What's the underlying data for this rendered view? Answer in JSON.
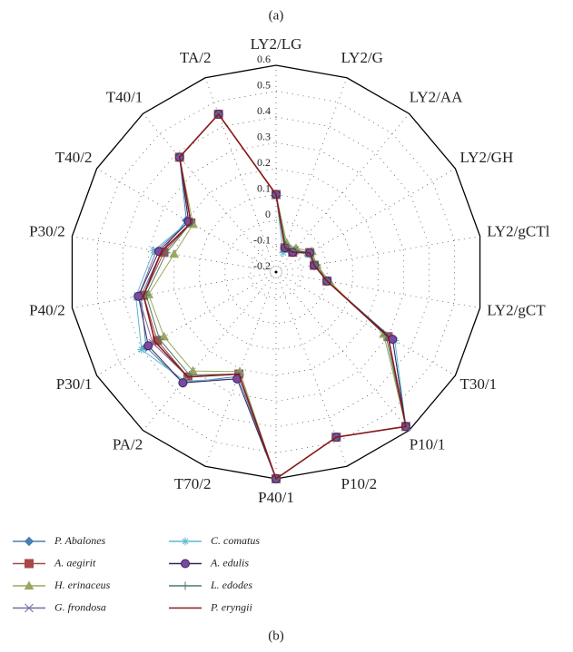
{
  "chart_data": {
    "type": "radar",
    "top_label": "(a)",
    "bottom_label": "(b)",
    "categories": [
      "LY2/LG",
      "LY2/G",
      "LY2/AA",
      "LY2/GH",
      "LY2/gCTl",
      "LY2/gCT",
      "T30/1",
      "P10/1",
      "P10/2",
      "P40/1",
      "T70/2",
      "PA/2",
      "P30/1",
      "P40/2",
      "P30/2",
      "T40/2",
      "T40/1",
      "TA/2"
    ],
    "rlim": [
      -0.2,
      0.6
    ],
    "rticks": [
      -0.2,
      -0.1,
      0,
      0.1,
      0.2,
      0.3,
      0.4,
      0.5,
      0.6
    ],
    "grid": true,
    "series": [
      {
        "name": "P. Abalones",
        "color": "#4a7eb0",
        "marker": "diamond",
        "values": [
          0.1,
          -0.1,
          -0.1,
          -0.05,
          -0.05,
          0.0,
          0.32,
          0.58,
          0.48,
          0.6,
          0.23,
          0.36,
          0.38,
          0.33,
          0.25,
          0.2,
          0.38,
          0.45
        ]
      },
      {
        "name": "A. aegirit",
        "color": "#a84848",
        "marker": "square",
        "values": [
          0.1,
          -0.1,
          -0.1,
          -0.05,
          -0.05,
          0.0,
          0.3,
          0.58,
          0.48,
          0.6,
          0.22,
          0.33,
          0.33,
          0.32,
          0.24,
          0.18,
          0.38,
          0.45
        ]
      },
      {
        "name": "H. erinaceus",
        "color": "#98a860",
        "marker": "triangle",
        "values": [
          0.1,
          -0.08,
          -0.08,
          -0.04,
          -0.04,
          0.01,
          0.28,
          0.58,
          0.48,
          0.6,
          0.21,
          0.3,
          0.3,
          0.3,
          0.2,
          0.17,
          0.38,
          0.45
        ]
      },
      {
        "name": "G. frondosa",
        "color": "#7868a0",
        "marker": "x",
        "values": [
          0.1,
          -0.1,
          -0.09,
          -0.05,
          -0.05,
          0.0,
          0.3,
          0.58,
          0.48,
          0.6,
          0.22,
          0.33,
          0.35,
          0.34,
          0.27,
          0.19,
          0.38,
          0.45
        ]
      },
      {
        "name": "C. comatus",
        "color": "#5ab8d0",
        "marker": "star",
        "values": [
          0.1,
          -0.12,
          -0.1,
          -0.06,
          -0.05,
          0.0,
          0.33,
          0.58,
          0.48,
          0.6,
          0.24,
          0.35,
          0.4,
          0.35,
          0.28,
          0.19,
          0.38,
          0.45
        ]
      },
      {
        "name": "A. edulis",
        "color": "#3c2460",
        "marker": "circle",
        "values": [
          0.1,
          -0.1,
          -0.1,
          -0.05,
          -0.05,
          0.0,
          0.32,
          0.58,
          0.48,
          0.6,
          0.24,
          0.36,
          0.37,
          0.34,
          0.26,
          0.19,
          0.38,
          0.45
        ]
      },
      {
        "name": "L. edodes",
        "color": "#4a7a6a",
        "marker": "plus",
        "values": [
          0.1,
          -0.09,
          -0.09,
          -0.05,
          -0.04,
          0.0,
          0.29,
          0.58,
          0.48,
          0.6,
          0.22,
          0.32,
          0.32,
          0.31,
          0.23,
          0.18,
          0.38,
          0.45
        ]
      },
      {
        "name": "P. eryngii",
        "color": "#8a1a1a",
        "marker": "none",
        "values": [
          0.1,
          -0.1,
          -0.1,
          -0.05,
          -0.05,
          0.0,
          0.3,
          0.58,
          0.48,
          0.6,
          0.22,
          0.33,
          0.34,
          0.32,
          0.25,
          0.18,
          0.38,
          0.45
        ]
      }
    ]
  }
}
